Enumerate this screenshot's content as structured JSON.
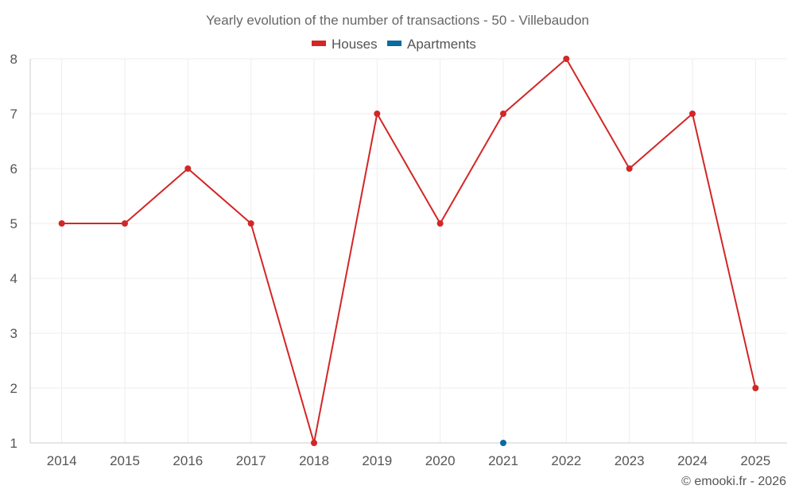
{
  "chart_data": {
    "type": "line",
    "title": "Yearly evolution of the number of transactions - 50 - Villebaudon",
    "categories": [
      "2014",
      "2015",
      "2016",
      "2017",
      "2018",
      "2019",
      "2020",
      "2021",
      "2022",
      "2023",
      "2024",
      "2025"
    ],
    "series": [
      {
        "name": "Houses",
        "color": "#d32626",
        "values": [
          5,
          5,
          6,
          5,
          1,
          7,
          5,
          7,
          8,
          6,
          7,
          2
        ]
      },
      {
        "name": "Apartments",
        "color": "#0a6aa1",
        "values": [
          null,
          null,
          null,
          null,
          null,
          null,
          null,
          1,
          null,
          null,
          null,
          null
        ]
      }
    ],
    "ylim": [
      1,
      8
    ],
    "yticks": [
      1,
      2,
      3,
      4,
      5,
      6,
      7,
      8
    ],
    "grid": true,
    "legend_position": "top-center",
    "xlabel": "",
    "ylabel": ""
  },
  "credit": "© emooki.fr - 2026"
}
